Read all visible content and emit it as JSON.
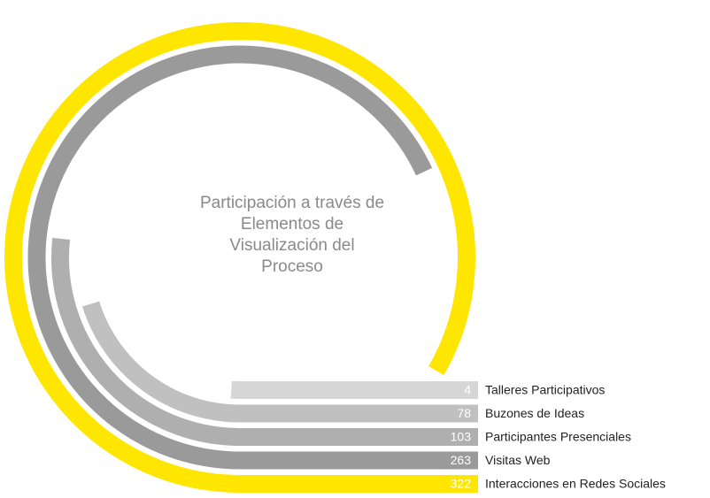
{
  "chart_data": {
    "type": "radial_bar",
    "title": "Participación a través de Elementos de Visualización del Proceso",
    "categories": [
      "Talleres Participativos",
      "Buzones de Ideas",
      "Participantes Presenciales",
      "Visitas Web",
      "Interacciones en Redes Sociales"
    ],
    "values": [
      4,
      78,
      103,
      263,
      322
    ],
    "colors": [
      "#d6d6d6",
      "#c0c0c0",
      "#afafaf",
      "#9a9a9a",
      "#ffe600"
    ]
  }
}
